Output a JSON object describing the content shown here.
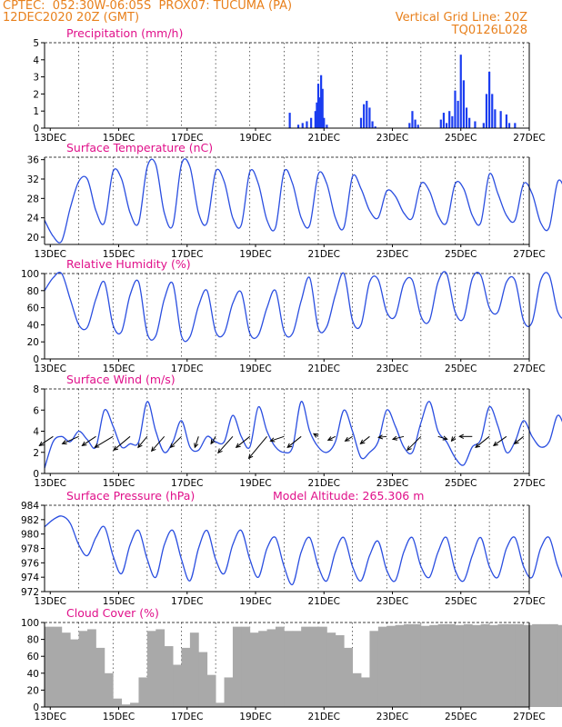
{
  "header": {
    "line1": "CPTEC:  052:30W-06:05S  PROX07: TUCUMA (PA)",
    "line2": "12DEC2020 20Z (GMT)",
    "grid_note": "Vertical Grid Line: 20Z",
    "code": "TQ0126L028",
    "model_altitude": "Model Altitude: 265.306 m"
  },
  "colors": {
    "header": "#e8801c",
    "panel_title": "#e0108a",
    "series": "#2a4ee0",
    "bars": "#1a3cf0",
    "cloud": "#a9a9a9",
    "wind_arrow": "#000000"
  },
  "x_axis": {
    "start": "12DEC2020 20Z",
    "end": "27DEC2020 00Z",
    "tick_labels": [
      "13DEC",
      "15DEC",
      "17DEC",
      "19DEC",
      "21DEC",
      "23DEC",
      "25DEC",
      "27DEC"
    ],
    "grid": "dotted vertical lines at 20Z each day"
  },
  "chart_data": [
    {
      "type": "bar",
      "title": "Precipitation (mm/h)",
      "ylim": [
        0,
        5
      ],
      "yticks": [
        "0",
        "1",
        "2",
        "3",
        "4",
        "5"
      ],
      "x": [
        "20DEC 00Z",
        "20DEC 06Z",
        "20DEC 09Z",
        "20DEC 12Z",
        "20DEC 15Z",
        "20DEC 18Z",
        "20DEC 19Z",
        "20DEC 20Z",
        "20DEC 21Z",
        "20DEC 22Z",
        "20DEC 23Z",
        "21DEC 00Z",
        "21DEC 02Z",
        "22DEC 02Z",
        "22DEC 04Z",
        "22DEC 06Z",
        "22DEC 08Z",
        "22DEC 10Z",
        "22DEC 12Z",
        "23DEC 12Z",
        "23DEC 14Z",
        "23DEC 16Z",
        "23DEC 18Z",
        "24DEC 10Z",
        "24DEC 12Z",
        "24DEC 14Z",
        "24DEC 16Z",
        "24DEC 18Z",
        "24DEC 20Z",
        "24DEC 22Z",
        "25DEC 00Z",
        "25DEC 02Z",
        "25DEC 04Z",
        "25DEC 06Z",
        "25DEC 10Z",
        "25DEC 16Z",
        "25DEC 18Z",
        "25DEC 20Z",
        "25DEC 22Z",
        "26DEC 00Z",
        "26DEC 04Z",
        "26DEC 08Z",
        "26DEC 10Z",
        "26DEC 14Z"
      ],
      "values": [
        0.9,
        0.2,
        0.3,
        0.4,
        0.6,
        1.0,
        1.5,
        2.6,
        1.8,
        3.1,
        2.3,
        0.6,
        0.2,
        0.6,
        1.4,
        1.6,
        1.2,
        0.4,
        0.1,
        0.3,
        1.0,
        0.5,
        0.2,
        0.5,
        0.9,
        0.3,
        1.0,
        0.7,
        2.2,
        1.6,
        4.3,
        2.8,
        1.2,
        0.6,
        0.4,
        0.3,
        2.0,
        3.3,
        2.0,
        1.1,
        1.0,
        0.8,
        0.3,
        0.3
      ]
    },
    {
      "type": "line",
      "title": "Surface Temperature (nC)",
      "ylim": [
        18.5,
        36.5
      ],
      "yticks": [
        "20",
        "24",
        "28",
        "32",
        "36"
      ],
      "series": [
        {
          "x_start": "12DEC2020 20Z",
          "step_hours": 6,
          "values": [
            23.5,
            20.2,
            19.2,
            26.0,
            31.5,
            32.0,
            25.5,
            23.0,
            33.5,
            32.0,
            25.0,
            23.0,
            34.5,
            35.0,
            25.0,
            22.5,
            35.0,
            34.5,
            25.0,
            23.0,
            33.5,
            31.5,
            24.0,
            22.5,
            33.5,
            31.0,
            23.5,
            22.0,
            33.5,
            31.0,
            24.0,
            22.5,
            33.0,
            31.0,
            24.0,
            22.0,
            32.5,
            30.0,
            25.5,
            24.0,
            29.5,
            28.5,
            25.0,
            24.0,
            31.0,
            29.5,
            24.5,
            23.0,
            31.0,
            30.0,
            24.5,
            23.0,
            33.0,
            29.0,
            24.5,
            23.5,
            31.0,
            29.0,
            23.0,
            22.0,
            31.5,
            29.0,
            24.0,
            22.0
          ]
        }
      ]
    },
    {
      "type": "line",
      "title": "Relative Humidity (%)",
      "ylim": [
        0,
        100
      ],
      "yticks": [
        "0",
        "20",
        "40",
        "60",
        "80",
        "100"
      ],
      "series": [
        {
          "x_start": "12DEC2020 20Z",
          "step_hours": 6,
          "values": [
            80,
            95,
            100,
            70,
            40,
            37,
            70,
            90,
            40,
            32,
            75,
            90,
            30,
            27,
            70,
            88,
            27,
            26,
            62,
            80,
            32,
            30,
            65,
            78,
            30,
            28,
            60,
            80,
            32,
            30,
            68,
            95,
            36,
            38,
            75,
            100,
            45,
            40,
            90,
            93,
            55,
            50,
            88,
            92,
            50,
            45,
            90,
            100,
            55,
            48,
            94,
            98,
            60,
            55,
            90,
            92,
            45,
            43,
            92,
            98,
            55,
            50,
            85,
            80
          ]
        }
      ]
    },
    {
      "type": "line",
      "title": "Surface Wind (m/s)",
      "ylim": [
        0,
        8
      ],
      "yticks": [
        "0",
        "2",
        "4",
        "6",
        "8"
      ],
      "series": [
        {
          "x_start": "12DEC2020 20Z",
          "step_hours": 6,
          "values": [
            0.5,
            3.0,
            3.5,
            3.0,
            4.0,
            3.2,
            2.5,
            6.0,
            4.5,
            2.5,
            2.8,
            3.0,
            6.8,
            4.0,
            2.0,
            3.0,
            5.0,
            2.5,
            2.2,
            3.5,
            3.0,
            3.0,
            5.5,
            3.5,
            2.5,
            6.3,
            4.0,
            2.5,
            2.0,
            2.5,
            6.8,
            4.0,
            2.5,
            2.0,
            3.0,
            6.0,
            4.0,
            1.5,
            2.0,
            3.0,
            6.0,
            4.5,
            2.5,
            2.0,
            4.8,
            6.8,
            4.0,
            3.0,
            1.5,
            0.8,
            2.5,
            3.2,
            6.3,
            4.5,
            2.0,
            3.0,
            5.0,
            3.5,
            2.5,
            3.0,
            5.5,
            4.0,
            2.8,
            3.0
          ]
        }
      ],
      "wind_vectors": {
        "times": [
          "13DEC 02Z",
          "13DEC 20Z",
          "14DEC 08Z",
          "14DEC 20Z",
          "15DEC 08Z",
          "15DEC 20Z",
          "16DEC 08Z",
          "16DEC 20Z",
          "17DEC 08Z",
          "17DEC 20Z",
          "18DEC 08Z",
          "18DEC 20Z",
          "19DEC 08Z",
          "19DEC 20Z",
          "20DEC 08Z",
          "20DEC 20Z",
          "21DEC 08Z",
          "21DEC 20Z",
          "22DEC 08Z",
          "22DEC 20Z",
          "23DEC 08Z",
          "23DEC 20Z",
          "24DEC 08Z",
          "24DEC 20Z",
          "25DEC 08Z",
          "25DEC 20Z",
          "26DEC 08Z",
          "26DEC 20Z"
        ],
        "u": [
          -1.5,
          -1.8,
          -1.5,
          -2.0,
          -1.8,
          -1.0,
          -1.4,
          -1.2,
          -0.4,
          -0.5,
          -1.6,
          -1.5,
          -2.0,
          -1.5,
          -1.5,
          -0.5,
          -0.8,
          -0.8,
          -1.0,
          -0.9,
          -1.2,
          -1.5,
          1.0,
          -0.4,
          -1.4,
          -1.5,
          -1.4,
          -1.0
        ],
        "v": [
          -1.0,
          -0.8,
          -1.0,
          -1.2,
          -1.5,
          -1.2,
          -1.6,
          -1.2,
          -1.2,
          -0.8,
          -1.8,
          -1.2,
          -2.4,
          -0.5,
          -1.2,
          0.3,
          -0.4,
          -0.5,
          -0.8,
          -0.1,
          -0.3,
          -1.5,
          -0.3,
          -0.5,
          0.0,
          -1.2,
          -1.0,
          -0.8
        ]
      }
    },
    {
      "type": "line",
      "title": "Surface Pressure (hPa)",
      "ylim": [
        972,
        984
      ],
      "yticks": [
        "972",
        "974",
        "976",
        "978",
        "980",
        "982",
        "984"
      ],
      "series": [
        {
          "x_start": "12DEC2020 20Z",
          "step_hours": 6,
          "values": [
            981.0,
            982.0,
            982.5,
            981.5,
            978.5,
            977.0,
            979.5,
            981.0,
            977.0,
            974.5,
            978.5,
            980.5,
            976.5,
            974.0,
            978.5,
            980.5,
            976.5,
            973.5,
            978.0,
            980.5,
            976.5,
            974.5,
            978.5,
            980.5,
            976.5,
            974.0,
            978.0,
            979.5,
            975.5,
            973.0,
            977.5,
            979.5,
            975.5,
            973.5,
            977.5,
            979.5,
            975.5,
            973.5,
            977.0,
            979.0,
            975.0,
            973.5,
            977.5,
            979.5,
            975.5,
            974.0,
            977.5,
            979.5,
            975.0,
            973.5,
            977.0,
            979.5,
            975.5,
            974.0,
            978.0,
            979.5,
            975.5,
            974.0,
            978.0,
            979.5,
            975.5,
            973.5,
            977.0,
            978.0
          ]
        }
      ]
    },
    {
      "type": "bar",
      "title": "Cloud Cover (%)",
      "ylim": [
        0,
        100
      ],
      "yticks": [
        "0",
        "20",
        "40",
        "60",
        "80",
        "100"
      ],
      "series": [
        {
          "x_start": "12DEC2020 20Z",
          "step_hours": 6,
          "values": [
            95,
            95,
            88,
            80,
            90,
            92,
            70,
            40,
            10,
            3,
            5,
            35,
            90,
            92,
            72,
            50,
            70,
            88,
            65,
            38,
            5,
            35,
            95,
            95,
            88,
            90,
            92,
            95,
            90,
            90,
            95,
            95,
            95,
            88,
            85,
            70,
            40,
            35,
            90,
            95,
            96,
            97,
            98,
            98,
            96,
            97,
            98,
            98,
            97,
            98,
            97,
            98,
            97,
            98,
            98,
            98,
            97,
            98,
            98,
            98,
            97,
            98,
            97,
            95
          ]
        }
      ]
    }
  ]
}
